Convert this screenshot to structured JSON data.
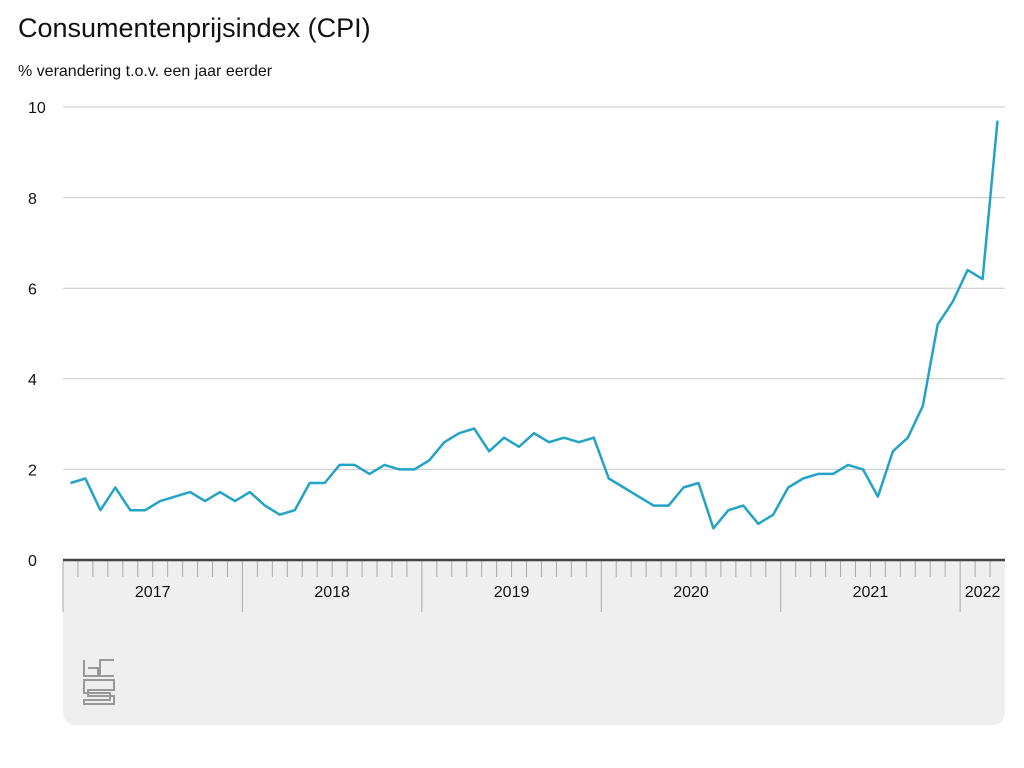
{
  "chart_data": {
    "type": "line",
    "title": "Consumentenprijsindex (CPI)",
    "subtitle": "% verandering t.o.v. een jaar eerder",
    "categories": [
      "2017",
      "2017",
      "2017",
      "2017",
      "2017",
      "2017",
      "2017",
      "2017",
      "2017",
      "2017",
      "2017",
      "2017",
      "2018",
      "2018",
      "2018",
      "2018",
      "2018",
      "2018",
      "2018",
      "2018",
      "2018",
      "2018",
      "2018",
      "2018",
      "2019",
      "2019",
      "2019",
      "2019",
      "2019",
      "2019",
      "2019",
      "2019",
      "2019",
      "2019",
      "2019",
      "2019",
      "2020",
      "2020",
      "2020",
      "2020",
      "2020",
      "2020",
      "2020",
      "2020",
      "2020",
      "2020",
      "2020",
      "2020",
      "2021",
      "2021",
      "2021",
      "2021",
      "2021",
      "2021",
      "2021",
      "2021",
      "2021",
      "2021",
      "2021",
      "2021",
      "2022",
      "2022",
      "2022"
    ],
    "series": [
      {
        "name": "CPI",
        "color": "#23a3c6",
        "values": [
          1.7,
          1.8,
          1.1,
          1.6,
          1.1,
          1.1,
          1.3,
          1.4,
          1.5,
          1.3,
          1.5,
          1.3,
          1.5,
          1.2,
          1.0,
          1.1,
          1.7,
          1.7,
          2.1,
          2.1,
          1.9,
          2.1,
          2.0,
          2.0,
          2.2,
          2.6,
          2.8,
          2.9,
          2.4,
          2.7,
          2.5,
          2.8,
          2.6,
          2.7,
          2.6,
          2.7,
          1.8,
          1.6,
          1.4,
          1.2,
          1.2,
          1.6,
          1.7,
          0.7,
          1.1,
          1.2,
          0.8,
          1.0,
          1.6,
          1.8,
          1.9,
          1.9,
          2.1,
          2.0,
          1.4,
          2.4,
          2.7,
          3.4,
          5.2,
          5.7,
          6.4,
          6.2,
          9.7
        ]
      }
    ],
    "ylim": [
      0,
      10
    ],
    "yticks": [
      0,
      2,
      4,
      6,
      8,
      10
    ],
    "grid": true
  }
}
